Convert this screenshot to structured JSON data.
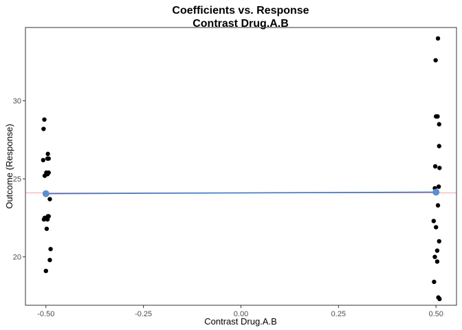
{
  "chart_data": {
    "type": "scatter",
    "title": "Coefficients vs. Response",
    "subtitle": "Contrast Drug.A.B",
    "xlabel": "Contrast Drug.A.B",
    "ylabel": "Outcome (Response)",
    "xlim": [
      -0.5525,
      0.5525
    ],
    "ylim": [
      16.9,
      34.7
    ],
    "x_ticks": [
      -0.5,
      -0.25,
      0.0,
      0.25,
      0.5
    ],
    "x_tick_labels": [
      "-0.50",
      "-0.25",
      "0.00",
      "0.25",
      "0.50"
    ],
    "y_ticks": [
      20,
      25,
      30
    ],
    "y_tick_labels": [
      "20",
      "25",
      "30"
    ],
    "grid": false,
    "points": [
      {
        "x": -0.504,
        "y": 28.8
      },
      {
        "x": -0.506,
        "y": 28.2
      },
      {
        "x": -0.495,
        "y": 26.6
      },
      {
        "x": -0.496,
        "y": 26.3
      },
      {
        "x": -0.493,
        "y": 26.3
      },
      {
        "x": -0.507,
        "y": 26.2
      },
      {
        "x": -0.499,
        "y": 25.4
      },
      {
        "x": -0.493,
        "y": 25.4
      },
      {
        "x": -0.503,
        "y": 25.2
      },
      {
        "x": -0.496,
        "y": 25.3
      },
      {
        "x": -0.49,
        "y": 23.7
      },
      {
        "x": -0.503,
        "y": 22.5
      },
      {
        "x": -0.499,
        "y": 22.5
      },
      {
        "x": -0.495,
        "y": 22.6
      },
      {
        "x": -0.493,
        "y": 22.6
      },
      {
        "x": -0.505,
        "y": 22.4
      },
      {
        "x": -0.496,
        "y": 22.4
      },
      {
        "x": -0.498,
        "y": 21.8
      },
      {
        "x": -0.488,
        "y": 20.5
      },
      {
        "x": -0.49,
        "y": 19.8
      },
      {
        "x": -0.5,
        "y": 19.1
      },
      {
        "x": 0.505,
        "y": 34.0
      },
      {
        "x": 0.499,
        "y": 32.6
      },
      {
        "x": 0.5,
        "y": 29.0
      },
      {
        "x": 0.504,
        "y": 29.0
      },
      {
        "x": 0.508,
        "y": 28.5
      },
      {
        "x": 0.508,
        "y": 27.1
      },
      {
        "x": 0.498,
        "y": 25.8
      },
      {
        "x": 0.509,
        "y": 25.7
      },
      {
        "x": 0.507,
        "y": 24.5
      },
      {
        "x": 0.497,
        "y": 24.4
      },
      {
        "x": 0.501,
        "y": 24.1
      },
      {
        "x": 0.505,
        "y": 23.3
      },
      {
        "x": 0.494,
        "y": 22.3
      },
      {
        "x": 0.5,
        "y": 21.9
      },
      {
        "x": 0.508,
        "y": 21.0
      },
      {
        "x": 0.503,
        "y": 20.4
      },
      {
        "x": 0.497,
        "y": 20.0
      },
      {
        "x": 0.503,
        "y": 19.7
      },
      {
        "x": 0.495,
        "y": 18.4
      },
      {
        "x": 0.506,
        "y": 17.4
      },
      {
        "x": 0.509,
        "y": 17.3
      }
    ],
    "group_means": [
      {
        "x": -0.5,
        "y": 24.05
      },
      {
        "x": 0.5,
        "y": 24.15
      }
    ],
    "reference_line": {
      "y": 24.1
    },
    "colors": {
      "points": "#000000",
      "means": "#5b8fd0",
      "fit_line": "#3a78c2",
      "reference_line": "#f4a3a3",
      "panel_border": "#333333"
    }
  }
}
